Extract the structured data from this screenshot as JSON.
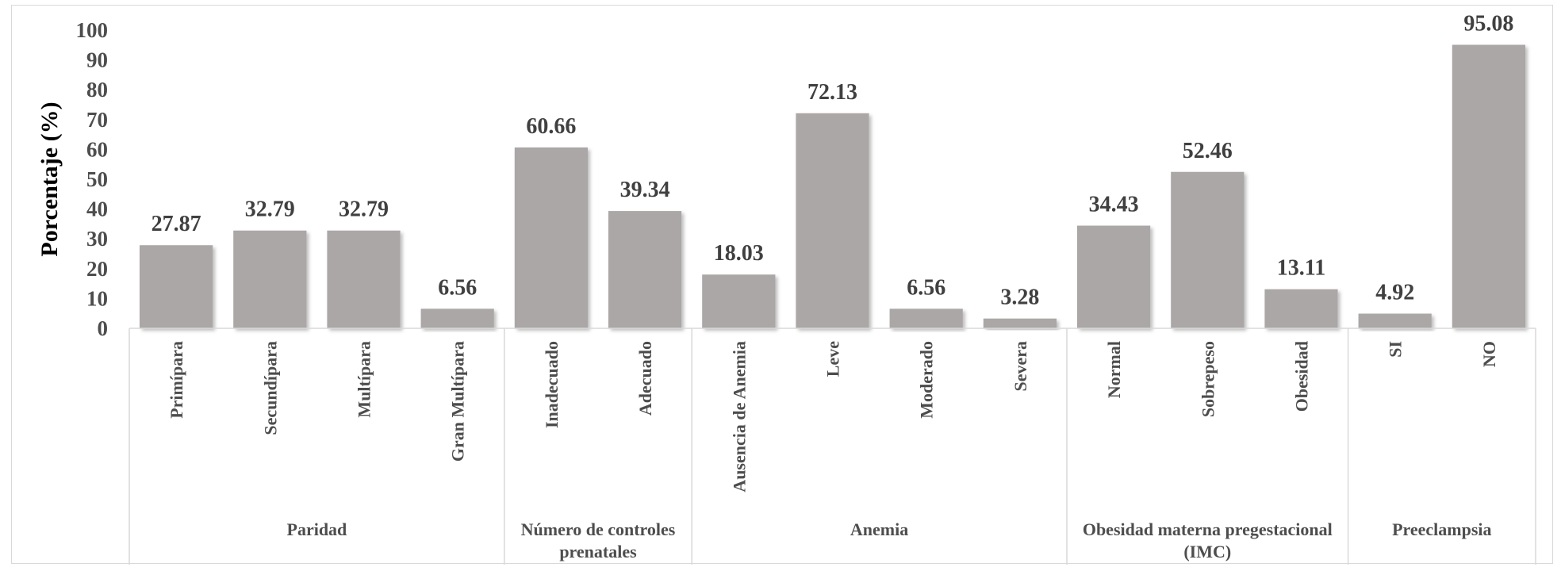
{
  "chart_data": {
    "type": "bar",
    "ylabel": "Porcentaje (%)",
    "ylim": [
      0,
      100
    ],
    "yticks": [
      "0",
      "10",
      "20",
      "30",
      "40",
      "50",
      "60",
      "70",
      "80",
      "90",
      "100"
    ],
    "grid": false,
    "legend": "none",
    "bar_color": "#aba7a6",
    "groups": [
      {
        "label": [
          "Paridad"
        ],
        "categories": [
          "Primípara",
          "Secundípara",
          "Multípara",
          "Gran Multípara"
        ],
        "values": [
          27.87,
          32.79,
          32.79,
          6.56
        ],
        "value_labels": [
          "27.87",
          "32.79",
          "32.79",
          "6.56"
        ]
      },
      {
        "label": [
          "Número de controles",
          "prenatales"
        ],
        "categories": [
          "Inadecuado",
          "Adecuado"
        ],
        "values": [
          60.66,
          39.34
        ],
        "value_labels": [
          "60.66",
          "39.34"
        ]
      },
      {
        "label": [
          "Anemia"
        ],
        "categories": [
          "Ausencia de Anemia",
          "Leve",
          "Moderado",
          "Severa"
        ],
        "values": [
          18.03,
          72.13,
          6.56,
          3.28
        ],
        "value_labels": [
          "18.03",
          "72.13",
          "6.56",
          "3.28"
        ]
      },
      {
        "label": [
          "Obesidad materna pregestacional",
          "(IMC)"
        ],
        "categories": [
          "Normal",
          "Sobrepeso",
          "Obesidad"
        ],
        "values": [
          34.43,
          52.46,
          13.11
        ],
        "value_labels": [
          "34.43",
          "52.46",
          "13.11"
        ]
      },
      {
        "label": [
          "Preeclampsia"
        ],
        "categories": [
          "SI",
          "NO"
        ],
        "values": [
          4.92,
          95.08
        ],
        "value_labels": [
          "4.92",
          "95.08"
        ]
      }
    ]
  }
}
